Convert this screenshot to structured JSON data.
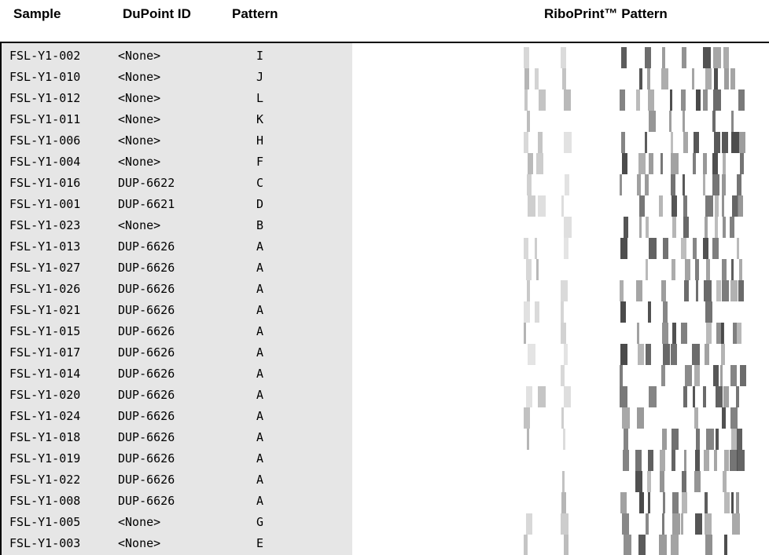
{
  "header": {
    "sample": "Sample",
    "id": "DuPoint ID",
    "pattern": "Pattern",
    "riboprint": "RiboPrint™ Pattern"
  },
  "rows": [
    [
      "FSL-Y1-002",
      "<None>",
      "I"
    ],
    [
      "FSL-Y1-010",
      "<None>",
      "J"
    ],
    [
      "FSL-Y1-012",
      "<None>",
      "L"
    ],
    [
      "FSL-Y1-011",
      "<None>",
      "K"
    ],
    [
      "FSL-Y1-006",
      "<None>",
      "H"
    ],
    [
      "FSL-Y1-004",
      "<None>",
      "F"
    ],
    [
      "FSL-Y1-016",
      "DUP-6622",
      "C"
    ],
    [
      "FSL-Y1-001",
      "DUP-6621",
      "D"
    ],
    [
      "FSL-Y1-023",
      "<None>",
      "B"
    ],
    [
      "FSL-Y1-013",
      "DUP-6626",
      "A"
    ],
    [
      "FSL-Y1-027",
      "DUP-6626",
      "A"
    ],
    [
      "FSL-Y1-026",
      "DUP-6626",
      "A"
    ],
    [
      "FSL-Y1-021",
      "DUP-6626",
      "A"
    ],
    [
      "FSL-Y1-015",
      "DUP-6626",
      "A"
    ],
    [
      "FSL-Y1-017",
      "DUP-6626",
      "A"
    ],
    [
      "FSL-Y1-014",
      "DUP-6626",
      "A"
    ],
    [
      "FSL-Y1-020",
      "DUP-6626",
      "A"
    ],
    [
      "FSL-Y1-024",
      "DUP-6626",
      "A"
    ],
    [
      "FSL-Y1-018",
      "DUP-6626",
      "A"
    ],
    [
      "FSL-Y1-019",
      "DUP-6626",
      "A"
    ],
    [
      "FSL-Y1-022",
      "DUP-6626",
      "A"
    ],
    [
      "FSL-Y1-008",
      "DUP-6626",
      "A"
    ],
    [
      "FSL-Y1-005",
      "<None>",
      "G"
    ],
    [
      "FSL-Y1-003",
      "<None>",
      "E"
    ]
  ]
}
